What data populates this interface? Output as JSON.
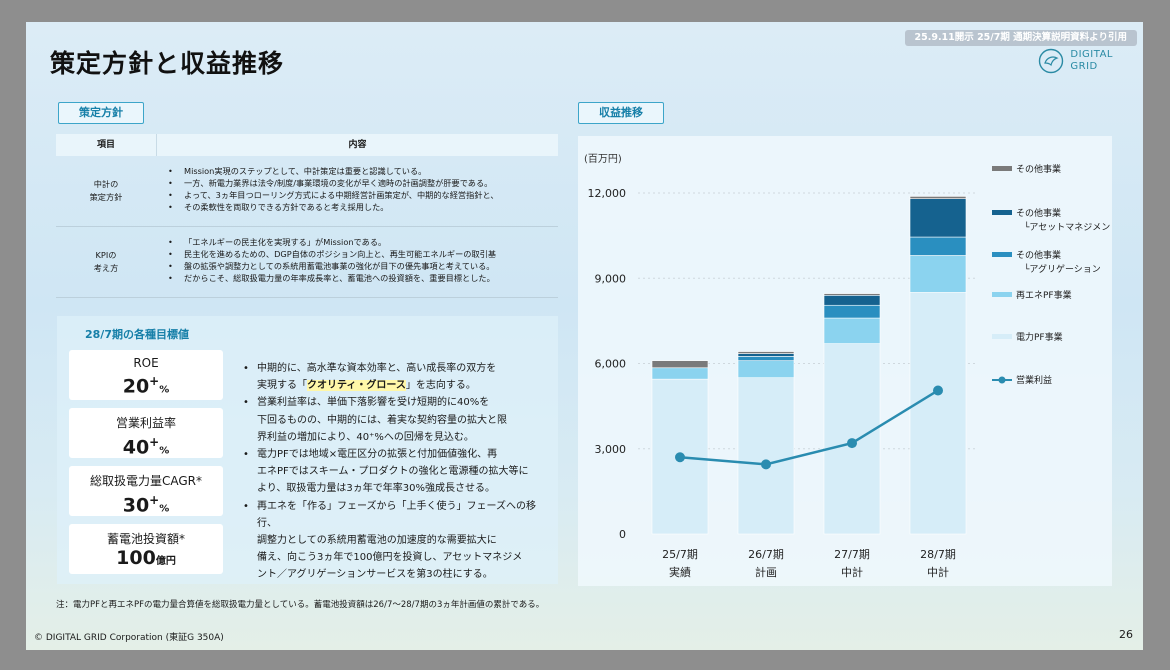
{
  "header": {
    "title": "策定方針と収益推移",
    "source_badge": "25.9.11開示  25/7期 通期決算説明資料より引用",
    "logo_line1": "DIGITAL",
    "logo_line2": "GRID"
  },
  "policy": {
    "section_label": "策定方針",
    "col_item": "項目",
    "col_content": "内容",
    "rows": [
      {
        "label_line1": "中計の",
        "label_line2": "策定方針",
        "bullets": [
          "Mission実現のステップとして、中計策定は重要と認識している。",
          "一方、新電力業界は法令/制度/事業環境の変化が早く適時の計画調整が肝要である。",
          "よって、3ヵ年目つローリング方式による中期経営計画策定が、中期的な経営指針と、",
          "その柔軟性を両取りできる方針であると考え採用した。"
        ]
      },
      {
        "label_line1": "KPIの",
        "label_line2": "考え方",
        "bullets": [
          "「エネルギーの民主化を実現する」がMissionである。",
          "民主化を進めるための、DGP自体のポジション向上と、再生可能エネルギーの取引基",
          "盤の拡張や調整力としての系統用蓄電池事業の強化が目下の優先事項と考えている。",
          "だからこそ、総取扱電力量の年率成長率と、蓄電池への投資額を、重要目標とした。"
        ]
      }
    ]
  },
  "targets": {
    "title": "28/7期の各種目標値",
    "cards": [
      {
        "label": "ROE",
        "value": "20",
        "plus": "+",
        "unit": "%"
      },
      {
        "label": "営業利益率",
        "value": "40",
        "plus": "+",
        "unit": "%"
      },
      {
        "label": "総取扱電力量CAGR*",
        "value": "30",
        "plus": "+",
        "unit": "%"
      },
      {
        "label": "蓄電池投資額*",
        "value": "100",
        "plus": "",
        "unit": "億円"
      }
    ],
    "bullets": [
      {
        "pre": "中期的に、高水準な資本効率と、高い成長率の双方を",
        "lines": [
          "実現する「",
          "クオリティ・グロース",
          "」を志向する。"
        ]
      },
      {
        "text": "営業利益率は、単価下落影響を受け短期的に40%を"
      },
      {
        "text": "下回るものの、中期的には、着実な契約容量の拡大と限"
      },
      {
        "text": "界利益の増加により、40⁺%への回帰を見込む。"
      },
      {
        "text": "電力PFでは地域×電圧区分の拡張と付加価値強化、再"
      },
      {
        "text": "エネPFではスキーム・プロダクトの強化と電源種の拡大等に"
      },
      {
        "text": "より、取扱電力量は3ヵ年で年率30%強成長させる。"
      },
      {
        "text": "再エネを「作る」フェーズから「上手く使う」フェーズへの移行、"
      },
      {
        "text": "調整力としての系統用蓄電池の加速度的な需要拡大に"
      },
      {
        "text": "備え、向こう3ヵ年で100億円を投資し、アセットマネジメ"
      },
      {
        "text": "ント／アグリゲーションサービスを第3の柱にする。"
      }
    ]
  },
  "revenue": {
    "section_label": "収益推移"
  },
  "chart_data": {
    "type": "bar",
    "stacked": true,
    "unit_label": "(百万円)",
    "categories": [
      "25/7期",
      "26/7期",
      "27/7期",
      "28/7期"
    ],
    "category_sublabels": [
      "実績",
      "計画",
      "中計",
      "中計"
    ],
    "yticks": [
      0,
      3000,
      6000,
      9000,
      12000
    ],
    "ylim": [
      0,
      12500
    ],
    "grid": true,
    "legend_position": "right",
    "series": [
      {
        "name": "電力PF事業",
        "color": "#d6edf8",
        "values": [
          5450,
          5500,
          6700,
          8500
        ]
      },
      {
        "name": "再エネPF事業",
        "color": "#8bd3ef",
        "values": [
          400,
          600,
          900,
          1300
        ]
      },
      {
        "name": "その他事業 └アグリゲーション",
        "color": "#2a8fc0",
        "values": [
          0,
          150,
          450,
          650
        ]
      },
      {
        "name": "その他事業 └アセットマネジメント",
        "color": "#15628f",
        "values": [
          0,
          100,
          350,
          1350
        ]
      },
      {
        "name": "その他事業",
        "color": "#7a7a7a",
        "values": [
          250,
          70,
          60,
          80
        ]
      }
    ],
    "line_series": {
      "name": "営業利益",
      "color": "#2a8cb0",
      "values": [
        2700,
        2450,
        3200,
        5050
      ]
    },
    "legend_entries": [
      {
        "line1": "その他事業",
        "line2": "",
        "color": "#7a7a7a",
        "kind": "bar"
      },
      {
        "line1": "その他事業",
        "line2": "└アセットマネジメント",
        "color": "#15628f",
        "kind": "bar"
      },
      {
        "line1": "その他事業",
        "line2": "└アグリゲーション",
        "color": "#2a8fc0",
        "kind": "bar"
      },
      {
        "line1": "再エネPF事業",
        "line2": "",
        "color": "#8bd3ef",
        "kind": "bar"
      },
      {
        "line1": "電力PF事業",
        "line2": "",
        "color": "#d6edf8",
        "kind": "bar"
      },
      {
        "line1": "営業利益",
        "line2": "",
        "color": "#2a8cb0",
        "kind": "line"
      }
    ]
  },
  "footer": {
    "note": "注：電力PFと再エネPFの電力量合算値を総取扱電力量としている。蓄電池投資額は26/7～28/7期の3ヵ年計画値の累計である。",
    "copyright": "© DIGITAL GRID Corporation (東証G 350A)",
    "page": "26"
  }
}
